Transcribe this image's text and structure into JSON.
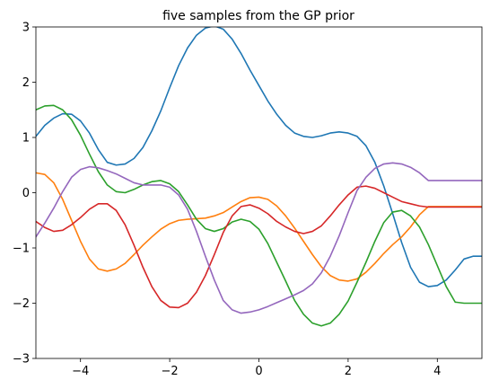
{
  "chart_data": {
    "type": "line",
    "title": "five samples from the GP prior",
    "xlabel": "",
    "ylabel": "",
    "xlim": [
      -5,
      5
    ],
    "ylim": [
      -3,
      3
    ],
    "xticks": [
      -4,
      -2,
      0,
      2,
      4
    ],
    "yticks": [
      -3,
      -2,
      -1,
      0,
      1,
      2,
      3
    ],
    "xtick_labels": [
      "−4",
      "−2",
      "0",
      "2",
      "4"
    ],
    "ytick_labels": [
      "−3",
      "−2",
      "−1",
      "0",
      "1",
      "2",
      "3"
    ],
    "grid": false,
    "legend": "none",
    "x": [
      -5.0,
      -4.8,
      -4.6,
      -4.4,
      -4.2,
      -4.0,
      -3.8,
      -3.6,
      -3.4,
      -3.2,
      -3.0,
      -2.8,
      -2.6,
      -2.4,
      -2.2,
      -2.0,
      -1.8,
      -1.6,
      -1.4,
      -1.2,
      -1.0,
      -0.8,
      -0.6,
      -0.4,
      -0.2,
      0.0,
      0.2,
      0.4,
      0.6,
      0.8,
      1.0,
      1.2,
      1.4,
      1.6,
      1.8,
      2.0,
      2.2,
      2.4,
      2.6,
      2.8,
      3.0,
      3.2,
      3.4,
      3.6,
      3.8,
      4.0,
      4.2,
      4.4,
      4.6,
      4.8,
      5.0
    ],
    "series": [
      {
        "color": "#1f77b4",
        "values": [
          1.02,
          1.22,
          1.35,
          1.43,
          1.42,
          1.3,
          1.08,
          0.78,
          0.55,
          0.5,
          0.52,
          0.62,
          0.82,
          1.12,
          1.48,
          1.9,
          2.3,
          2.62,
          2.85,
          2.98,
          3.02,
          2.96,
          2.78,
          2.52,
          2.22,
          1.94,
          1.66,
          1.42,
          1.22,
          1.08,
          1.02,
          1.0,
          1.03,
          1.08,
          1.1,
          1.08,
          1.02,
          0.85,
          0.55,
          0.12,
          -0.38,
          -0.9,
          -1.35,
          -1.62,
          -1.7,
          -1.68,
          -1.58,
          -1.4,
          -1.2,
          -1.15,
          -1.15
        ]
      },
      {
        "color": "#ff7f0e",
        "values": [
          0.36,
          0.33,
          0.18,
          -0.12,
          -0.5,
          -0.88,
          -1.2,
          -1.38,
          -1.42,
          -1.38,
          -1.28,
          -1.12,
          -0.95,
          -0.8,
          -0.66,
          -0.56,
          -0.5,
          -0.48,
          -0.47,
          -0.46,
          -0.42,
          -0.36,
          -0.26,
          -0.16,
          -0.09,
          -0.08,
          -0.12,
          -0.24,
          -0.42,
          -0.64,
          -0.88,
          -1.12,
          -1.34,
          -1.5,
          -1.58,
          -1.6,
          -1.56,
          -1.44,
          -1.28,
          -1.1,
          -0.94,
          -0.8,
          -0.62,
          -0.4,
          -0.25,
          -0.25,
          -0.25,
          -0.25,
          -0.25,
          -0.25,
          -0.25
        ]
      },
      {
        "color": "#2ca02c",
        "values": [
          1.5,
          1.57,
          1.58,
          1.5,
          1.32,
          1.04,
          0.7,
          0.38,
          0.14,
          0.02,
          0.0,
          0.06,
          0.14,
          0.2,
          0.22,
          0.16,
          0.02,
          -0.22,
          -0.48,
          -0.65,
          -0.7,
          -0.65,
          -0.53,
          -0.48,
          -0.52,
          -0.66,
          -0.92,
          -1.26,
          -1.6,
          -1.95,
          -2.2,
          -2.36,
          -2.41,
          -2.36,
          -2.2,
          -1.96,
          -1.62,
          -1.26,
          -0.88,
          -0.54,
          -0.35,
          -0.32,
          -0.42,
          -0.62,
          -0.94,
          -1.32,
          -1.7,
          -1.98,
          -2.0,
          -2.0,
          -2.0
        ]
      },
      {
        "color": "#d62728",
        "values": [
          -0.52,
          -0.63,
          -0.7,
          -0.68,
          -0.58,
          -0.45,
          -0.3,
          -0.2,
          -0.2,
          -0.32,
          -0.58,
          -0.95,
          -1.35,
          -1.7,
          -1.95,
          -2.07,
          -2.08,
          -2.0,
          -1.8,
          -1.5,
          -1.12,
          -0.72,
          -0.42,
          -0.25,
          -0.22,
          -0.28,
          -0.38,
          -0.52,
          -0.62,
          -0.7,
          -0.74,
          -0.7,
          -0.6,
          -0.42,
          -0.22,
          -0.04,
          0.1,
          0.12,
          0.08,
          0.0,
          -0.08,
          -0.16,
          -0.2,
          -0.24,
          -0.26,
          -0.26,
          -0.26,
          -0.26,
          -0.26,
          -0.26,
          -0.26
        ]
      },
      {
        "color": "#9467bd",
        "values": [
          -0.8,
          -0.55,
          -0.28,
          0.02,
          0.28,
          0.42,
          0.47,
          0.45,
          0.4,
          0.34,
          0.26,
          0.18,
          0.14,
          0.14,
          0.14,
          0.1,
          -0.04,
          -0.3,
          -0.7,
          -1.15,
          -1.58,
          -1.95,
          -2.12,
          -2.18,
          -2.16,
          -2.12,
          -2.06,
          -1.99,
          -1.92,
          -1.85,
          -1.77,
          -1.65,
          -1.45,
          -1.15,
          -0.78,
          -0.36,
          0.04,
          0.28,
          0.44,
          0.52,
          0.54,
          0.52,
          0.46,
          0.36,
          0.22,
          0.22,
          0.22,
          0.22,
          0.22,
          0.22,
          0.22
        ]
      }
    ]
  }
}
